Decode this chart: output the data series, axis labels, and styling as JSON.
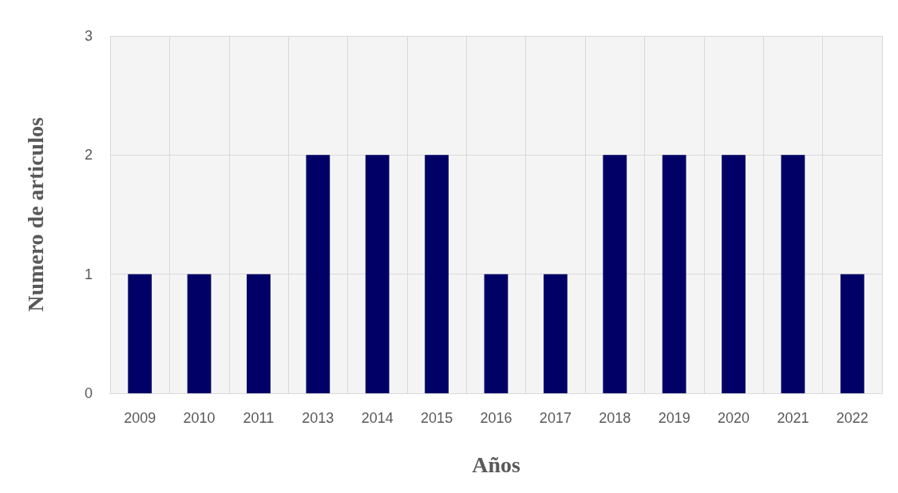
{
  "chart_data": {
    "type": "bar",
    "xlabel": "Años",
    "ylabel": "Numero de articulos",
    "categories": [
      "2009",
      "2010",
      "2011",
      "2013",
      "2014",
      "2015",
      "2016",
      "2017",
      "2018",
      "2019",
      "2020",
      "2021",
      "2022"
    ],
    "values": [
      1,
      1,
      1,
      2,
      2,
      2,
      1,
      1,
      2,
      2,
      2,
      2,
      1
    ],
    "color": "#000066",
    "ylim": [
      0,
      3
    ],
    "yticks": [
      0,
      1,
      2,
      3
    ],
    "grid": true
  }
}
